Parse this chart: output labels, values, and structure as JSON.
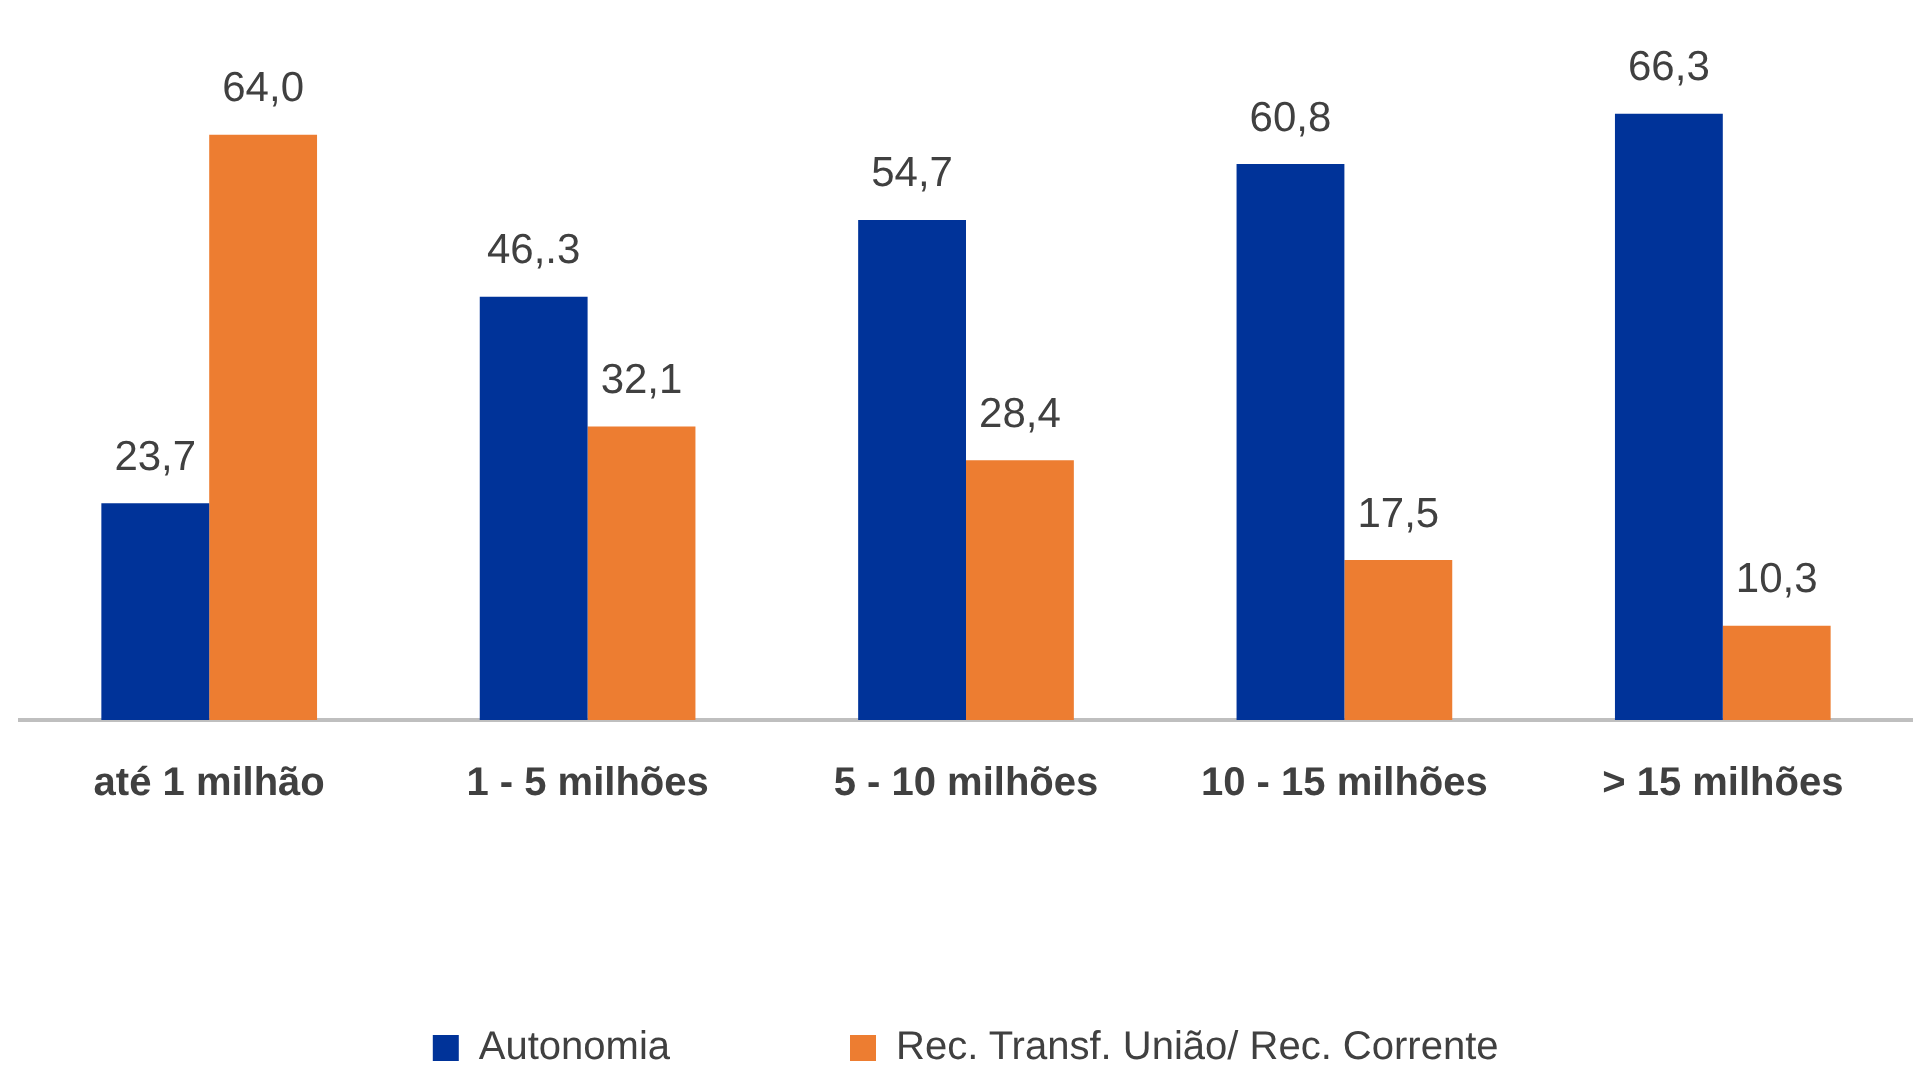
{
  "chart_data": {
    "type": "bar",
    "categories": [
      "até 1 milhão",
      "1 - 5 milhões",
      "5 - 10 milhões",
      "10 - 15 milhões",
      "> 15 milhões"
    ],
    "series": [
      {
        "name": "Autonomia",
        "color": "#003399",
        "values": [
          23.7,
          46.3,
          54.7,
          60.8,
          66.3
        ],
        "value_labels": [
          "23,7",
          "46,.3",
          "54,7",
          "60,8",
          "66,3"
        ]
      },
      {
        "name": "Rec. Transf. União/ Rec. Corrente",
        "color": "#ed7d31",
        "values": [
          64.0,
          32.1,
          28.4,
          17.5,
          10.3
        ],
        "value_labels": [
          "64,0",
          "32,1",
          "28,4",
          "17,5",
          "10,3"
        ]
      }
    ],
    "grid": false,
    "legend": "bottom",
    "tick_labels": "x"
  }
}
